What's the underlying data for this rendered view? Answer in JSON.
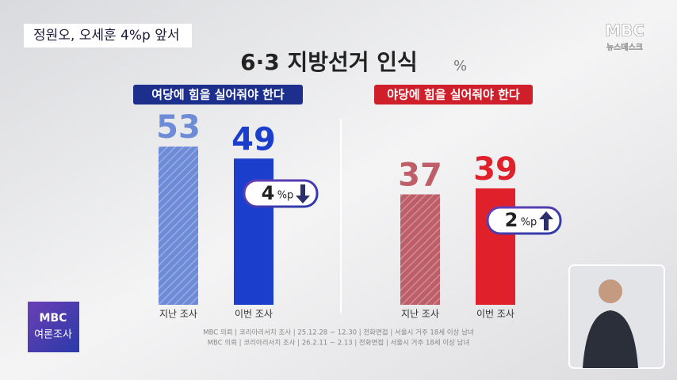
{
  "headline": "정원오, 오세훈 4%p 앞서",
  "logo": {
    "brand": "MBC",
    "program": "뉴스데스크"
  },
  "badge": {
    "brand": "MBC",
    "label": "여론조사"
  },
  "chart_data": {
    "type": "bar",
    "title": "6·3 지방선거 인식",
    "unit": "%",
    "groups": [
      {
        "label": "여당에 힘을 실어줘야 한다",
        "label_color": "#1c2f8c",
        "categories": [
          "지난 조사",
          "이번 조사"
        ],
        "values": [
          53,
          49
        ],
        "colors": [
          "#6d8bd6",
          "#1b3fcc"
        ],
        "hatched": [
          true,
          false
        ],
        "change": {
          "value": 4,
          "unit": "%p",
          "direction": "down"
        }
      },
      {
        "label": "야당에 힘을 실어줘야 한다",
        "label_color": "#cf1f2b",
        "categories": [
          "지난 조사",
          "이번 조사"
        ],
        "values": [
          37,
          39
        ],
        "colors": [
          "#bd5e68",
          "#e0212b"
        ],
        "hatched": [
          true,
          false
        ],
        "change": {
          "value": 2,
          "unit": "%p",
          "direction": "up"
        }
      }
    ],
    "source": [
      "MBC 의뢰 | 코리아리서치 조사 | 25.12.28 ~ 12.30 | 전화면접 | 서울시 거주 18세 이상 남녀",
      "MBC 의뢰 | 코리아리서치 조사 | 26.2.11 ~ 2.13 | 전화면접 | 서울시 거주 18세 이상 남녀"
    ]
  }
}
